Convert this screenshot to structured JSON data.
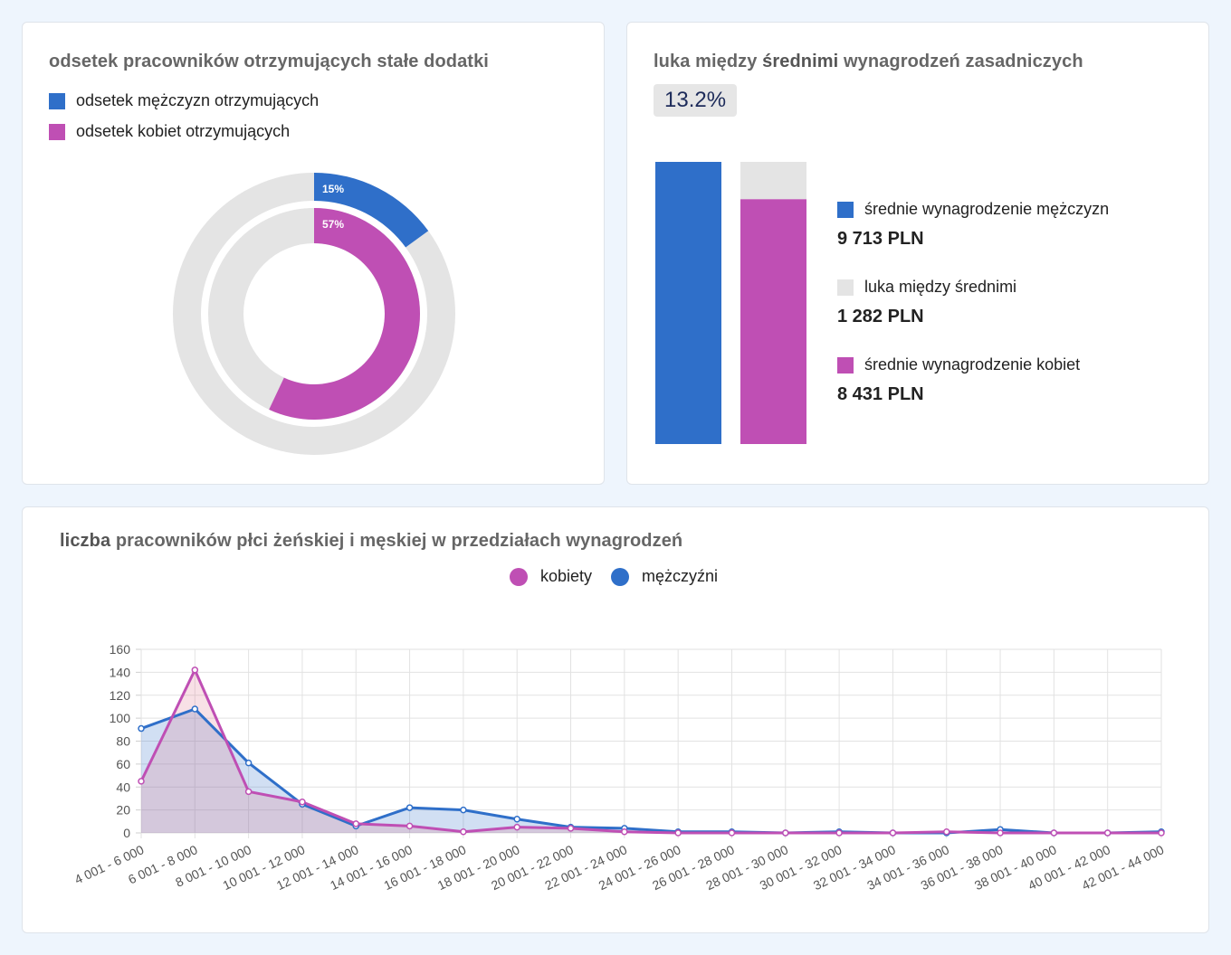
{
  "colors": {
    "men": "#2f6fc9",
    "women": "#bf4fb4",
    "gap": "#e4e4e4"
  },
  "donut_card": {
    "title": "odsetek pracowników otrzymujących stałe dodatki",
    "legend": [
      "odsetek mężczyzn otrzymujących",
      "odsetek kobiet otrzymujących"
    ]
  },
  "gap_card": {
    "title_pre": "luka między ",
    "title_bold": "średnimi",
    "title_post": " wynagrodzeń zasadniczych",
    "gap_percent": "13.2%",
    "items": [
      {
        "label": "średnie wynagrodzenie mężczyzn",
        "value": "9 713 PLN"
      },
      {
        "label": "luka między średnimi",
        "value": "1 282 PLN"
      },
      {
        "label": "średnie wynagrodzenie kobiet",
        "value": "8 431 PLN"
      }
    ]
  },
  "line_card": {
    "title_bold": "liczba",
    "title_rest": " pracowników płci żeńskiej i męskiej w przedziałach wynagrodzeń",
    "legend": [
      "kobiety",
      "mężczyźni"
    ]
  },
  "chart_data": [
    {
      "type": "pie",
      "series": [
        {
          "name": "odsetek mężczyzn otrzymujących",
          "value": 15,
          "label": "15%"
        },
        {
          "name": "odsetek kobiet otrzymujących",
          "value": 57,
          "label": "57%"
        }
      ]
    },
    {
      "type": "bar",
      "categories": [
        "mężczyźni",
        "kobiety"
      ],
      "series": [
        {
          "name": "średnie wynagrodzenie mężczyzn",
          "values": [
            9713,
            0
          ]
        },
        {
          "name": "średnie wynagrodzenie kobiet",
          "values": [
            0,
            8431
          ]
        },
        {
          "name": "luka między średnimi",
          "values": [
            0,
            1282
          ]
        }
      ]
    },
    {
      "type": "area",
      "categories": [
        "4 001 - 6 000",
        "6 001 - 8 000",
        "8 001 - 10 000",
        "10 001 - 12 000",
        "12 001 - 14 000",
        "14 001 - 16 000",
        "16 001 - 18 000",
        "18 001 - 20 000",
        "20 001 - 22 000",
        "22 001 - 24 000",
        "24 001 - 26 000",
        "26 001 - 28 000",
        "28 001 - 30 000",
        "30 001 - 32 000",
        "32 001 - 34 000",
        "34 001 - 36 000",
        "36 001 - 38 000",
        "38 001 - 40 000",
        "40 001 - 42 000",
        "42 001 - 44 000"
      ],
      "series": [
        {
          "name": "mężczyźni",
          "values": [
            91,
            108,
            61,
            25,
            6,
            22,
            20,
            12,
            5,
            4,
            1,
            1,
            0,
            1,
            0,
            0,
            3,
            0,
            0,
            1
          ]
        },
        {
          "name": "kobiety",
          "values": [
            45,
            142,
            36,
            27,
            8,
            6,
            1,
            5,
            4,
            1,
            0,
            0,
            0,
            0,
            0,
            1,
            0,
            0,
            0,
            0
          ]
        }
      ],
      "ylim": [
        0,
        160
      ],
      "yticks": [
        0,
        20,
        40,
        60,
        80,
        100,
        120,
        140,
        160
      ],
      "grid": true,
      "legend": "top-center"
    }
  ]
}
